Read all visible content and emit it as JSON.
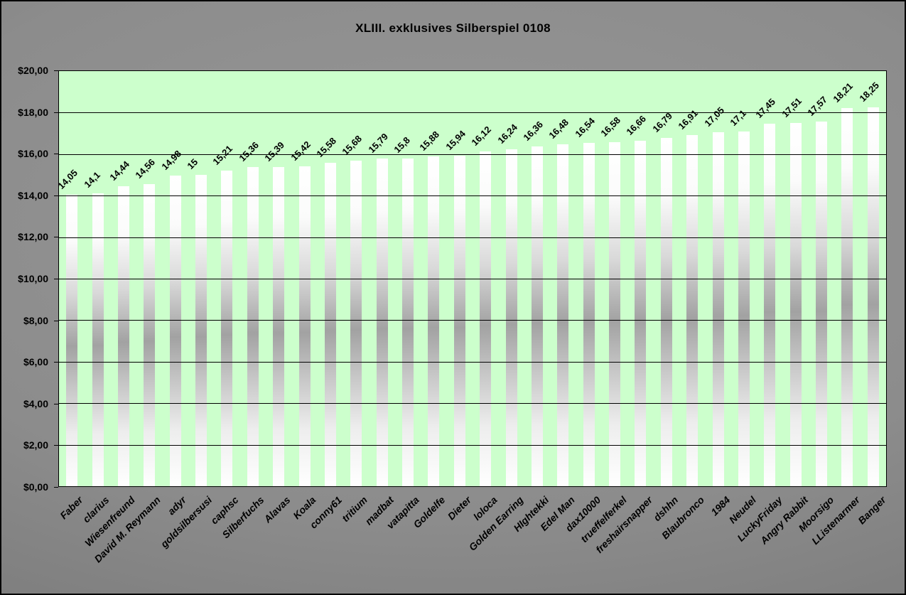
{
  "chart_data": {
    "type": "bar",
    "title": "XLIII. exklusives Silberspiel 0108",
    "categories": [
      "Faber",
      "clarius",
      "Wiesenfreund",
      "David M. Reymann",
      "adyr",
      "goldsilbersusi",
      "caphsc",
      "Silberfuchs",
      "Alavas",
      "Koala",
      "conny61",
      "tritium",
      "madbat",
      "vatapitta",
      "Goldelfe",
      "Dieter",
      "loloca",
      "Golden Earring",
      "HIghtekki",
      "Edel Man",
      "dax10000",
      "trueffelferkel",
      "freshairsnapper",
      "dshhn",
      "Blaubronco",
      "1984",
      "Neudel",
      "LuckyFriday",
      "Angry Rabbit",
      "Moorsigo",
      "LListenarmer",
      "Banger"
    ],
    "values": [
      14.05,
      14.1,
      14.44,
      14.56,
      14.98,
      15,
      15.21,
      15.36,
      15.39,
      15.42,
      15.58,
      15.68,
      15.79,
      15.8,
      15.88,
      15.94,
      16.12,
      16.24,
      16.36,
      16.48,
      16.54,
      16.58,
      16.66,
      16.79,
      16.91,
      17.05,
      17.1,
      17.45,
      17.51,
      17.57,
      18.21,
      18.25
    ],
    "value_labels": [
      "14,05",
      "14,1",
      "14,44",
      "14,56",
      "14,98",
      "15",
      "15,21",
      "15,36",
      "15,39",
      "15,42",
      "15,58",
      "15,68",
      "15,79",
      "15,8",
      "15,88",
      "15,94",
      "16,12",
      "16,24",
      "16,36",
      "16,48",
      "16,54",
      "16,58",
      "16,66",
      "16,79",
      "16,91",
      "17,05",
      "17,1",
      "17,45",
      "17,51",
      "17,57",
      "18,21",
      "18,25"
    ],
    "y_ticks": [
      "$20,00",
      "$18,00",
      "$16,00",
      "$14,00",
      "$12,00",
      "$10,00",
      "$8,00",
      "$6,00",
      "$4,00",
      "$2,00",
      "$0,00"
    ],
    "ylim": [
      0,
      20
    ],
    "grid": true,
    "legend": "none",
    "xlabel": "",
    "ylabel": "",
    "colors": {
      "background": "#8c8c8c",
      "plot_background": "#ccffcc",
      "bar_light": "#ffffff",
      "bar_shade": "#a2a2a2",
      "gridline": "#000000",
      "text": "#000000"
    }
  }
}
